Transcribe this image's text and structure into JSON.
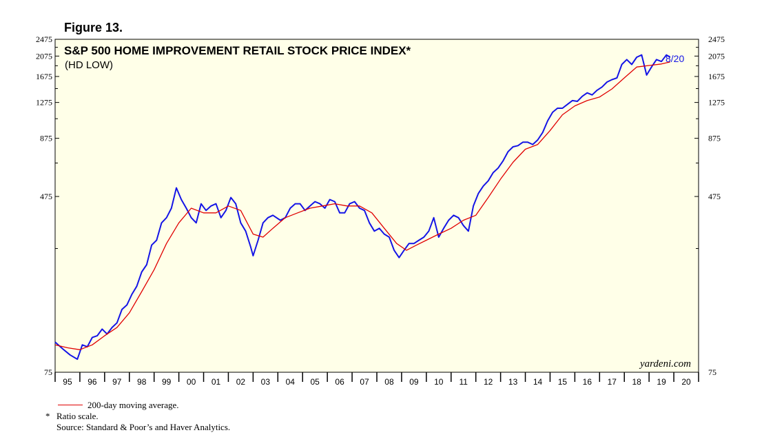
{
  "figure_label": "Figure 13.",
  "chart_data": {
    "type": "line",
    "title": "S&P 500 HOME IMPROVEMENT RETAIL STOCK PRICE INDEX*",
    "subtitle": "(HD LOW)",
    "scale": "log",
    "ylim": [
      75,
      2475
    ],
    "y_ticks": [
      75,
      475,
      875,
      1275,
      1675,
      2075,
      2475
    ],
    "x_ticks": [
      "95",
      "96",
      "97",
      "98",
      "99",
      "00",
      "01",
      "02",
      "03",
      "04",
      "05",
      "06",
      "07",
      "08",
      "09",
      "10",
      "11",
      "12",
      "13",
      "14",
      "15",
      "16",
      "17",
      "18",
      "19",
      "20"
    ],
    "xlim": [
      1995.0,
      2021.0
    ],
    "last_date_label": "8/20",
    "watermark": "yardeni.com",
    "series": [
      {
        "name": "S&P 500 Home Improvement Retail",
        "color": "#1414e6",
        "points": [
          [
            1995.0,
            103
          ],
          [
            1995.3,
            96
          ],
          [
            1995.6,
            90
          ],
          [
            1995.9,
            86
          ],
          [
            1996.1,
            100
          ],
          [
            1996.3,
            98
          ],
          [
            1996.5,
            108
          ],
          [
            1996.7,
            110
          ],
          [
            1996.9,
            118
          ],
          [
            1997.1,
            112
          ],
          [
            1997.3,
            120
          ],
          [
            1997.5,
            126
          ],
          [
            1997.7,
            145
          ],
          [
            1997.9,
            152
          ],
          [
            1998.1,
            170
          ],
          [
            1998.3,
            185
          ],
          [
            1998.5,
            215
          ],
          [
            1998.7,
            232
          ],
          [
            1998.9,
            285
          ],
          [
            1999.1,
            300
          ],
          [
            1999.3,
            360
          ],
          [
            1999.5,
            380
          ],
          [
            1999.7,
            420
          ],
          [
            1999.9,
            520
          ],
          [
            2000.1,
            460
          ],
          [
            2000.3,
            420
          ],
          [
            2000.5,
            380
          ],
          [
            2000.7,
            360
          ],
          [
            2000.9,
            440
          ],
          [
            2001.1,
            410
          ],
          [
            2001.3,
            430
          ],
          [
            2001.5,
            440
          ],
          [
            2001.7,
            380
          ],
          [
            2001.9,
            410
          ],
          [
            2002.1,
            470
          ],
          [
            2002.3,
            440
          ],
          [
            2002.5,
            360
          ],
          [
            2002.7,
            330
          ],
          [
            2002.9,
            280
          ],
          [
            2003.0,
            255
          ],
          [
            2003.2,
            300
          ],
          [
            2003.4,
            360
          ],
          [
            2003.6,
            380
          ],
          [
            2003.8,
            390
          ],
          [
            2004.1,
            370
          ],
          [
            2004.3,
            380
          ],
          [
            2004.5,
            420
          ],
          [
            2004.7,
            440
          ],
          [
            2004.9,
            440
          ],
          [
            2005.1,
            410
          ],
          [
            2005.3,
            430
          ],
          [
            2005.5,
            450
          ],
          [
            2005.7,
            440
          ],
          [
            2005.9,
            420
          ],
          [
            2006.1,
            460
          ],
          [
            2006.3,
            450
          ],
          [
            2006.5,
            400
          ],
          [
            2006.7,
            400
          ],
          [
            2006.9,
            440
          ],
          [
            2007.1,
            450
          ],
          [
            2007.3,
            420
          ],
          [
            2007.5,
            410
          ],
          [
            2007.7,
            360
          ],
          [
            2007.9,
            330
          ],
          [
            2008.1,
            340
          ],
          [
            2008.3,
            320
          ],
          [
            2008.5,
            310
          ],
          [
            2008.7,
            270
          ],
          [
            2008.9,
            250
          ],
          [
            2009.1,
            270
          ],
          [
            2009.3,
            290
          ],
          [
            2009.5,
            290
          ],
          [
            2009.7,
            300
          ],
          [
            2009.9,
            310
          ],
          [
            2010.1,
            330
          ],
          [
            2010.3,
            380
          ],
          [
            2010.5,
            310
          ],
          [
            2010.7,
            340
          ],
          [
            2010.9,
            370
          ],
          [
            2011.1,
            390
          ],
          [
            2011.3,
            380
          ],
          [
            2011.5,
            350
          ],
          [
            2011.7,
            330
          ],
          [
            2011.9,
            430
          ],
          [
            2012.1,
            490
          ],
          [
            2012.3,
            530
          ],
          [
            2012.5,
            560
          ],
          [
            2012.7,
            610
          ],
          [
            2012.9,
            640
          ],
          [
            2013.1,
            690
          ],
          [
            2013.3,
            760
          ],
          [
            2013.5,
            800
          ],
          [
            2013.7,
            810
          ],
          [
            2013.9,
            840
          ],
          [
            2014.1,
            840
          ],
          [
            2014.3,
            820
          ],
          [
            2014.5,
            860
          ],
          [
            2014.7,
            930
          ],
          [
            2014.9,
            1050
          ],
          [
            2015.1,
            1150
          ],
          [
            2015.3,
            1200
          ],
          [
            2015.5,
            1200
          ],
          [
            2015.7,
            1250
          ],
          [
            2015.9,
            1300
          ],
          [
            2016.1,
            1290
          ],
          [
            2016.3,
            1360
          ],
          [
            2016.5,
            1410
          ],
          [
            2016.7,
            1380
          ],
          [
            2016.9,
            1450
          ],
          [
            2017.1,
            1500
          ],
          [
            2017.3,
            1580
          ],
          [
            2017.5,
            1620
          ],
          [
            2017.7,
            1650
          ],
          [
            2017.9,
            1900
          ],
          [
            2018.1,
            2000
          ],
          [
            2018.3,
            1900
          ],
          [
            2018.5,
            2050
          ],
          [
            2018.7,
            2100
          ],
          [
            2018.9,
            1700
          ],
          [
            2019.1,
            1850
          ],
          [
            2019.3,
            2000
          ],
          [
            2019.5,
            1960
          ],
          [
            2019.7,
            2100
          ],
          [
            2019.85,
            2050
          ]
        ]
      },
      {
        "name": "200-day moving average.",
        "color": "#e00000",
        "points": [
          [
            1995.0,
            100
          ],
          [
            1995.5,
            97
          ],
          [
            1996.0,
            95
          ],
          [
            1996.5,
            100
          ],
          [
            1997.0,
            110
          ],
          [
            1997.5,
            120
          ],
          [
            1998.0,
            140
          ],
          [
            1998.5,
            175
          ],
          [
            1999.0,
            220
          ],
          [
            1999.5,
            290
          ],
          [
            2000.0,
            360
          ],
          [
            2000.5,
            420
          ],
          [
            2001.0,
            400
          ],
          [
            2001.5,
            400
          ],
          [
            2002.0,
            430
          ],
          [
            2002.5,
            410
          ],
          [
            2003.0,
            320
          ],
          [
            2003.4,
            310
          ],
          [
            2003.8,
            340
          ],
          [
            2004.3,
            380
          ],
          [
            2004.8,
            400
          ],
          [
            2005.3,
            420
          ],
          [
            2005.8,
            430
          ],
          [
            2006.3,
            440
          ],
          [
            2006.8,
            430
          ],
          [
            2007.3,
            430
          ],
          [
            2007.8,
            400
          ],
          [
            2008.3,
            340
          ],
          [
            2008.8,
            290
          ],
          [
            2009.2,
            270
          ],
          [
            2009.6,
            285
          ],
          [
            2010.0,
            300
          ],
          [
            2010.5,
            320
          ],
          [
            2011.0,
            340
          ],
          [
            2011.5,
            370
          ],
          [
            2012.0,
            390
          ],
          [
            2012.5,
            470
          ],
          [
            2013.0,
            570
          ],
          [
            2013.5,
            680
          ],
          [
            2014.0,
            780
          ],
          [
            2014.5,
            820
          ],
          [
            2015.0,
            950
          ],
          [
            2015.5,
            1120
          ],
          [
            2016.0,
            1230
          ],
          [
            2016.5,
            1300
          ],
          [
            2017.0,
            1350
          ],
          [
            2017.5,
            1470
          ],
          [
            2018.0,
            1650
          ],
          [
            2018.5,
            1850
          ],
          [
            2019.0,
            1880
          ],
          [
            2019.5,
            1910
          ],
          [
            2019.85,
            1950
          ]
        ]
      }
    ]
  },
  "legend": {
    "ma_label": "200-day moving average."
  },
  "footnote": {
    "mark": "*",
    "text": "Ratio scale."
  },
  "source": "Source: Standard & Poor’s and Haver Analytics."
}
